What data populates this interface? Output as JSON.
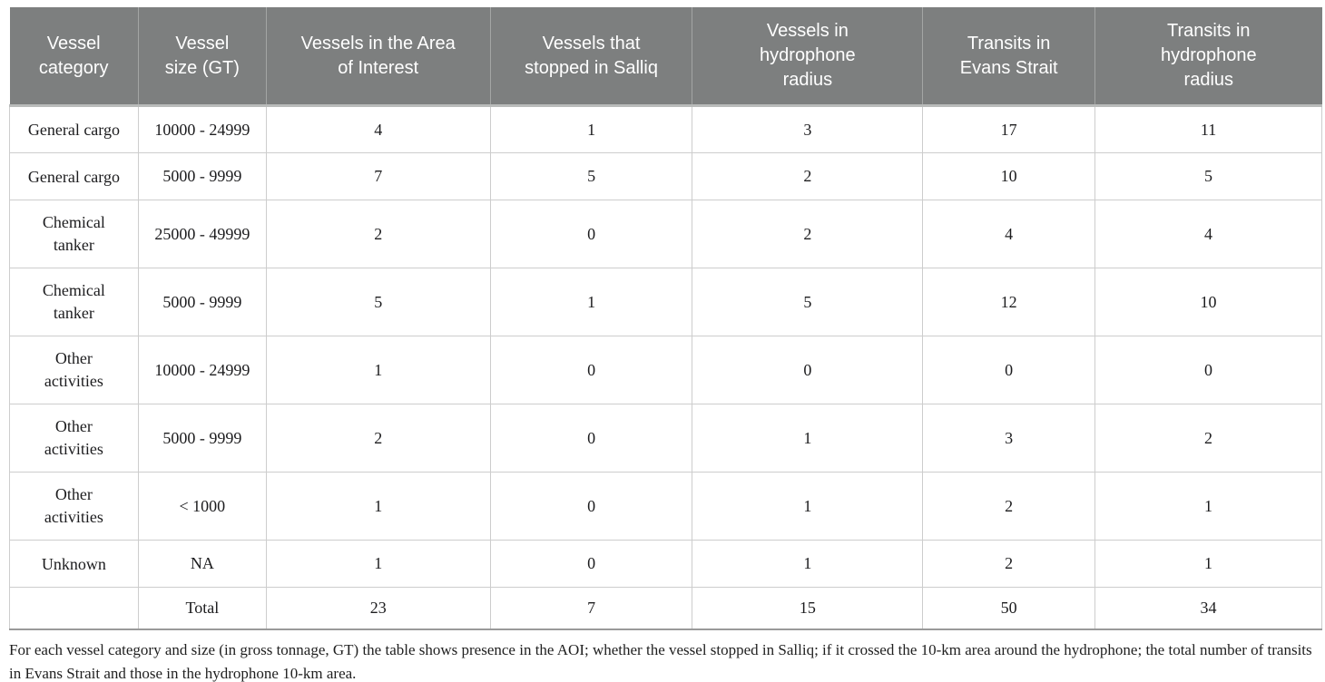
{
  "table": {
    "columns": [
      "Vessel category",
      "Vessel size (GT)",
      "Vessels in the Area of Interest",
      "Vessels that stopped in Salliq",
      "Vessels in hydrophone radius",
      "Transits in Evans Strait",
      "Transits in hydrophone radius"
    ],
    "rows": [
      [
        "General cargo",
        "10000 - 24999",
        "4",
        "1",
        "3",
        "17",
        "11"
      ],
      [
        "General cargo",
        "5000 - 9999",
        "7",
        "5",
        "2",
        "10",
        "5"
      ],
      [
        "Chemical tanker",
        "25000 - 49999",
        "2",
        "0",
        "2",
        "4",
        "4"
      ],
      [
        "Chemical tanker",
        "5000 - 9999",
        "5",
        "1",
        "5",
        "12",
        "10"
      ],
      [
        "Other activities",
        "10000 - 24999",
        "1",
        "0",
        "0",
        "0",
        "0"
      ],
      [
        "Other activities",
        "5000 - 9999",
        "2",
        "0",
        "1",
        "3",
        "2"
      ],
      [
        "Other activities",
        "< 1000",
        "1",
        "0",
        "1",
        "2",
        "1"
      ],
      [
        "Unknown",
        "NA",
        "1",
        "0",
        "1",
        "2",
        "1"
      ],
      [
        "",
        "Total",
        "23",
        "7",
        "15",
        "50",
        "34"
      ]
    ],
    "caption": "For each vessel category and size (in gross tonnage, GT) the table shows presence in the AOI; whether the vessel stopped in Salliq; if it crossed the 10-km area around the hydrophone; the total number of transits in Evans Strait and those in the hydrophone 10-km area."
  },
  "colors": {
    "header_bg": "#7d7f7f",
    "header_text": "#ffffff",
    "header_separator": "#a3a5a4",
    "grid_line": "#cdcdcd",
    "table_bottom_rule": "#9a9a9a",
    "body_text": "#1c1c1e"
  }
}
